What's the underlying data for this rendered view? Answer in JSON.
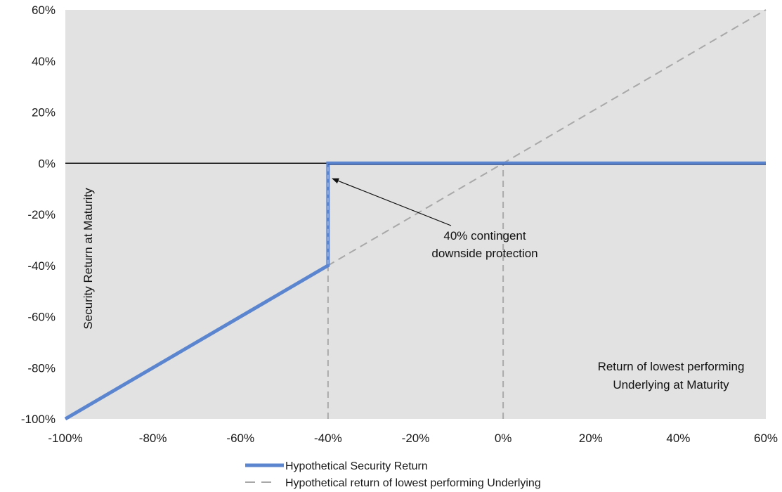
{
  "chart_data": {
    "type": "line",
    "title": "",
    "xlabel": "Return of lowest performing Underlying at Maturity",
    "xlabel_lines": [
      "Return of lowest performing",
      "Underlying at Maturity"
    ],
    "ylabel": "Security Return at Maturity",
    "xlim": [
      -100,
      60
    ],
    "ylim": [
      -100,
      60
    ],
    "x_ticks": [
      -100,
      -80,
      -60,
      -40,
      -20,
      0,
      20,
      40,
      60
    ],
    "y_ticks": [
      -100,
      -80,
      -60,
      -40,
      -20,
      0,
      20,
      40,
      60
    ],
    "x_tick_labels": [
      "-100%",
      "-80%",
      "-60%",
      "-40%",
      "-20%",
      "0%",
      "20%",
      "40%",
      "60%"
    ],
    "y_tick_labels": [
      "-100%",
      "-80%",
      "-60%",
      "-40%",
      "-20%",
      "0%",
      "20%",
      "40%",
      "60%"
    ],
    "grid": false,
    "plot_background": "#e2e2e2",
    "reference_lines": [
      {
        "orientation": "vertical",
        "x": -40,
        "y_from": -100,
        "y_to": -40,
        "style": "dashed",
        "color": "#aaaaaa"
      },
      {
        "orientation": "vertical",
        "x": 0,
        "y_from": -100,
        "y_to": 0,
        "style": "dashed",
        "color": "#aaaaaa"
      }
    ],
    "series": [
      {
        "name": "Hypothetical Security Return",
        "color": "#5b85cf",
        "style": "solid",
        "x": [
          -100,
          -40,
          -40,
          60
        ],
        "y": [
          -100,
          -40,
          0,
          0
        ]
      },
      {
        "name": "Hypothetical return of lowest performing Underlying",
        "color": "#a8a8a8",
        "style": "dashed",
        "x": [
          -100,
          60
        ],
        "y": [
          -100,
          60
        ]
      }
    ],
    "annotation": {
      "lines": [
        "40% contingent",
        "downside protection"
      ],
      "arrow_to": {
        "x": -39,
        "y": -6
      }
    },
    "legend_position": "bottom"
  }
}
